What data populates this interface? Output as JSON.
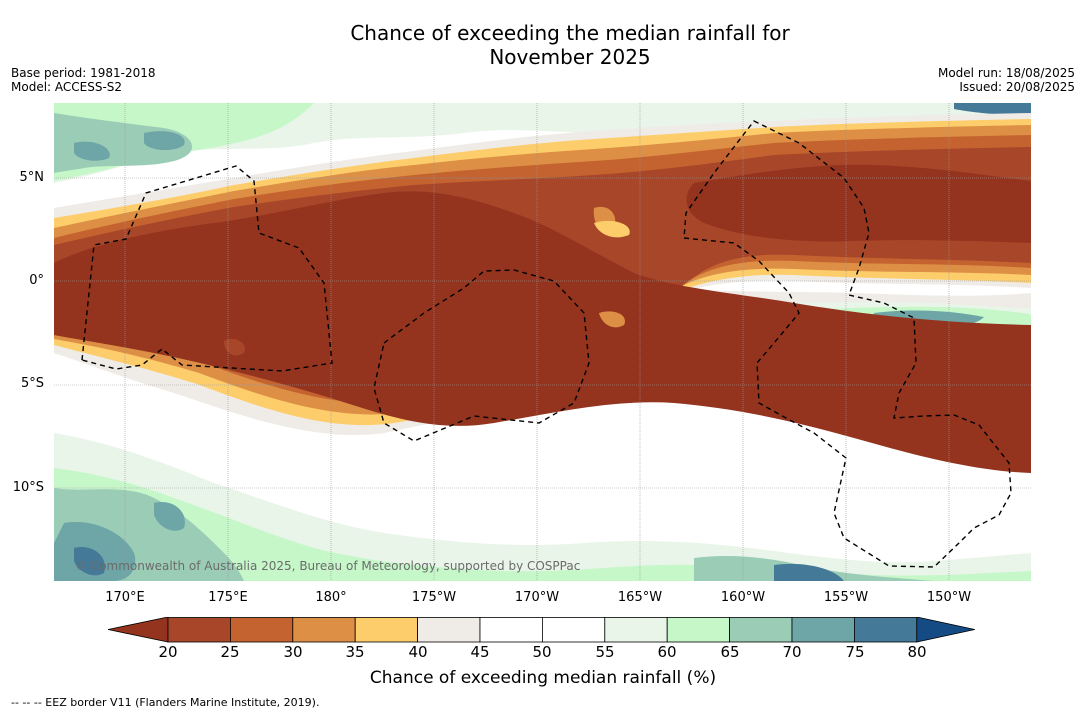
{
  "title_line1": "Chance of exceeding the median rainfall for",
  "title_line2": "November 2025",
  "meta_left": [
    "Base period: 1981-2018",
    "Model: ACCESS-S2"
  ],
  "meta_right": [
    "Model run: 18/08/2025",
    "Issued: 20/08/2025"
  ],
  "copyright": "© Commonwealth of Australia 2025, Bureau of Meteorology, supported by COSPPac",
  "lat_labels": [
    "5°N",
    "0°",
    "5°S",
    "10°S"
  ],
  "lon_labels": [
    "170°E",
    "175°E",
    "180°",
    "175°W",
    "170°W",
    "165°W",
    "160°W",
    "155°W",
    "150°W"
  ],
  "colorbar": {
    "title": "Chance of exceeding median rainfall (%)",
    "ticks": [
      "20",
      "25",
      "30",
      "35",
      "40",
      "45",
      "50",
      "55",
      "60",
      "65",
      "70",
      "75",
      "80"
    ],
    "colors": [
      "#a8462a",
      "#c4632f",
      "#dd8f45",
      "#fdcd6b",
      "#efebe6",
      "#ffffff",
      "#ffffff",
      "#e9f5e9",
      "#c6f7c9",
      "#9bccb6",
      "#6ea6a8",
      "#447a98"
    ],
    "under_color": "#94341f",
    "over_color": "#154b84"
  },
  "footnote": "--  --  -- EEZ border V11 (Flanders Marine Institute, 2019)."
}
